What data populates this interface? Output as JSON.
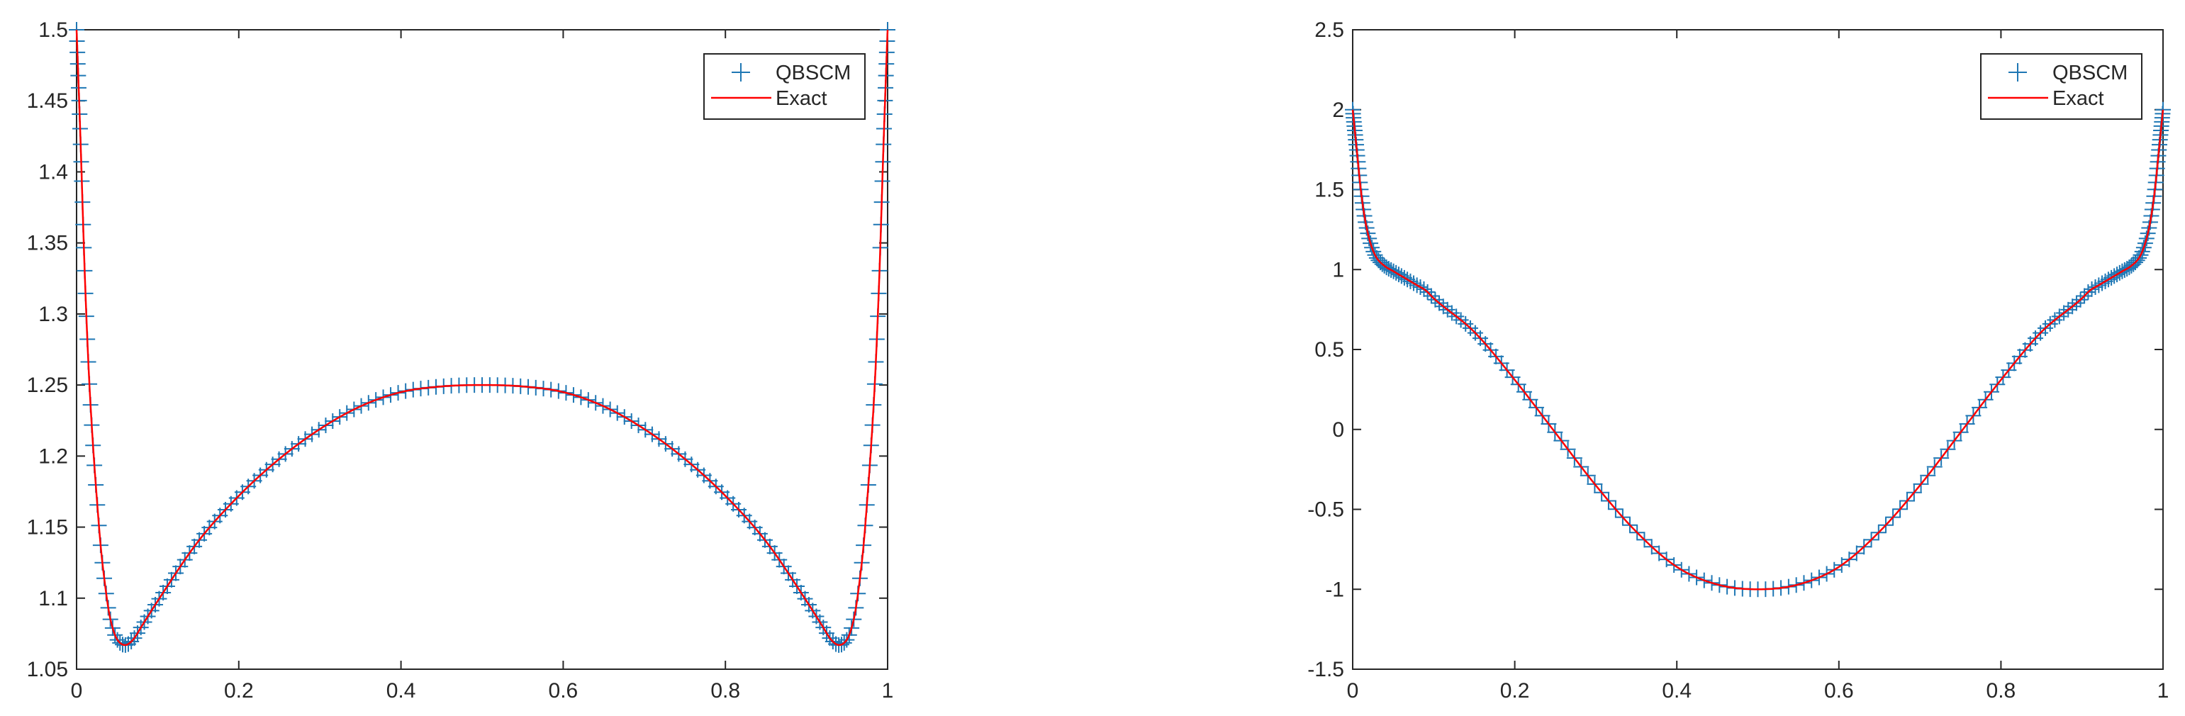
{
  "chart_data": [
    {
      "type": "line",
      "xlim": [
        0,
        1
      ],
      "ylim": [
        1.05,
        1.5
      ],
      "x_ticks": [
        "0",
        "0.2",
        "0.4",
        "0.6",
        "0.8",
        "1"
      ],
      "y_ticks": [
        "1.05",
        "1.1",
        "1.15",
        "1.2",
        "1.25",
        "1.3",
        "1.35",
        "1.4",
        "1.45",
        "1.5"
      ],
      "legend": {
        "position": "top-right",
        "entries": [
          "QBSCM",
          "Exact"
        ]
      },
      "series": [
        {
          "name": "QBSCM",
          "style": "plus-markers",
          "color": "#1f77b4"
        },
        {
          "name": "Exact",
          "style": "line",
          "color": "#ff0000"
        }
      ],
      "x": [
        0,
        0.005,
        0.01,
        0.015,
        0.02,
        0.025,
        0.03,
        0.035,
        0.04,
        0.045,
        0.05,
        0.06,
        0.07,
        0.08,
        0.1,
        0.15,
        0.2,
        0.25,
        0.3,
        0.35,
        0.4,
        0.45,
        0.5,
        0.55,
        0.6,
        0.65,
        0.7,
        0.75,
        0.8,
        0.85,
        0.9,
        0.92,
        0.93,
        0.94,
        0.95,
        0.955,
        0.96,
        0.965,
        0.97,
        0.975,
        0.98,
        0.985,
        0.99,
        0.995,
        1
      ],
      "y": [
        1.5,
        1.42,
        1.33,
        1.26,
        1.21,
        1.17,
        1.135,
        1.11,
        1.09,
        1.078,
        1.071,
        1.067,
        1.071,
        1.08,
        1.098,
        1.14,
        1.172,
        1.198,
        1.219,
        1.235,
        1.245,
        1.249,
        1.25,
        1.249,
        1.245,
        1.235,
        1.219,
        1.198,
        1.172,
        1.14,
        1.098,
        1.08,
        1.071,
        1.067,
        1.071,
        1.078,
        1.09,
        1.11,
        1.135,
        1.17,
        1.21,
        1.26,
        1.33,
        1.42,
        1.5
      ]
    },
    {
      "type": "line",
      "xlim": [
        0,
        1
      ],
      "ylim": [
        -1.5,
        2.5
      ],
      "x_ticks": [
        "0",
        "0.2",
        "0.4",
        "0.6",
        "0.8",
        "1"
      ],
      "y_ticks": [
        "-1.5",
        "-1",
        "-0.5",
        "0",
        "0.5",
        "1",
        "1.5",
        "2",
        "2.5"
      ],
      "legend": {
        "position": "top-right",
        "entries": [
          "QBSCM",
          "Exact"
        ]
      },
      "series": [
        {
          "name": "QBSCM",
          "style": "plus-markers",
          "color": "#1f77b4"
        },
        {
          "name": "Exact",
          "style": "line",
          "color": "#ff0000"
        }
      ],
      "x": [
        0,
        0.005,
        0.01,
        0.015,
        0.02,
        0.025,
        0.03,
        0.04,
        0.05,
        0.06,
        0.07,
        0.08,
        0.09,
        0.1,
        0.15,
        0.2,
        0.25,
        0.3,
        0.35,
        0.4,
        0.45,
        0.5,
        0.55,
        0.6,
        0.65,
        0.7,
        0.75,
        0.8,
        0.85,
        0.9,
        0.91,
        0.92,
        0.93,
        0.94,
        0.95,
        0.96,
        0.97,
        0.975,
        0.98,
        0.985,
        0.99,
        0.995,
        1
      ],
      "y": [
        2,
        1.75,
        1.5,
        1.32,
        1.2,
        1.12,
        1.07,
        1.02,
        0.99,
        0.96,
        0.93,
        0.9,
        0.87,
        0.82,
        0.61,
        0.31,
        -0.02,
        -0.35,
        -0.64,
        -0.86,
        -0.97,
        -1,
        -0.97,
        -0.86,
        -0.64,
        -0.35,
        -0.02,
        0.31,
        0.61,
        0.82,
        0.87,
        0.9,
        0.93,
        0.96,
        0.99,
        1.02,
        1.07,
        1.12,
        1.2,
        1.32,
        1.5,
        1.75,
        2
      ]
    }
  ]
}
